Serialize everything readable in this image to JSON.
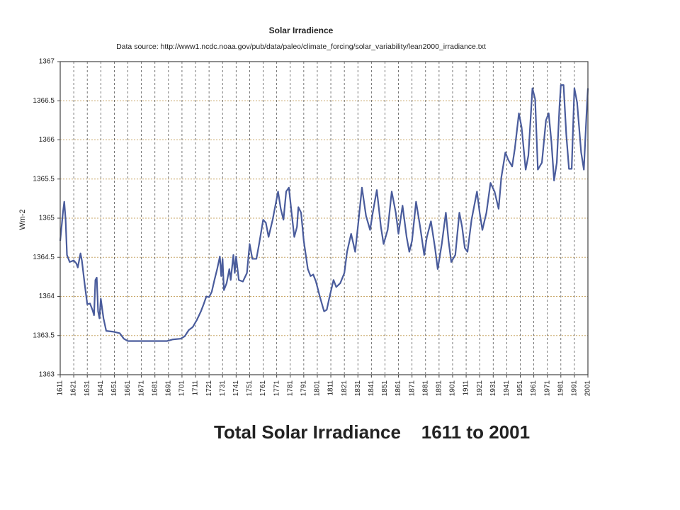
{
  "chart_data": {
    "type": "line",
    "title": "Solar Irradience",
    "subtitle": "Data source: http://www1.ncdc.noaa.gov/pub/data/paleo/climate_forcing/solar_variability/lean2000_irradiance.txt",
    "y_label": "Wm-2",
    "caption": "Total Solar Irradiance    1611 to 2001",
    "color": "#4a5c9c",
    "grid": true,
    "xlim": [
      1611,
      2001
    ],
    "ylim": [
      1363,
      1367
    ],
    "xticks": [
      1611,
      1621,
      1631,
      1641,
      1651,
      1661,
      1671,
      1681,
      1691,
      1701,
      1711,
      1721,
      1731,
      1741,
      1751,
      1761,
      1771,
      1781,
      1791,
      1801,
      1811,
      1821,
      1831,
      1841,
      1851,
      1861,
      1871,
      1881,
      1891,
      1901,
      1911,
      1921,
      1931,
      1941,
      1951,
      1961,
      1971,
      1981,
      1991,
      2001
    ],
    "yticks": [
      1363,
      1363.5,
      1364,
      1364.5,
      1365,
      1365.5,
      1366,
      1366.5,
      1367
    ],
    "x": [
      1611,
      1613,
      1614,
      1615,
      1616,
      1618,
      1621,
      1623,
      1624,
      1626,
      1627,
      1629,
      1631,
      1633,
      1635,
      1636,
      1637,
      1638,
      1639,
      1640,
      1641,
      1643,
      1645,
      1650,
      1655,
      1658,
      1661,
      1670,
      1680,
      1690,
      1694,
      1700,
      1703,
      1706,
      1709,
      1712,
      1715,
      1717,
      1719,
      1721,
      1723,
      1725,
      1727,
      1729,
      1730,
      1731,
      1732,
      1734,
      1736,
      1737,
      1739,
      1740,
      1741,
      1743,
      1746,
      1749,
      1751,
      1753,
      1756,
      1758,
      1761,
      1763,
      1765,
      1768,
      1770,
      1772,
      1774,
      1776,
      1778,
      1780,
      1782,
      1784,
      1786,
      1787,
      1789,
      1791,
      1794,
      1796,
      1798,
      1800,
      1803,
      1806,
      1808,
      1810,
      1813,
      1815,
      1818,
      1821,
      1823,
      1826,
      1829,
      1831,
      1834,
      1837,
      1840,
      1842,
      1845,
      1848,
      1850,
      1853,
      1856,
      1859,
      1861,
      1864,
      1867,
      1869,
      1871,
      1874,
      1877,
      1880,
      1882,
      1885,
      1888,
      1890,
      1893,
      1896,
      1898,
      1900,
      1903,
      1906,
      1908,
      1910,
      1912,
      1915,
      1917,
      1919,
      1921,
      1923,
      1926,
      1929,
      1932,
      1935,
      1937,
      1940,
      1942,
      1945,
      1947,
      1950,
      1952,
      1955,
      1957,
      1960,
      1962,
      1964,
      1967,
      1970,
      1972,
      1974,
      1976,
      1978,
      1980,
      1981,
      1983,
      1985,
      1987,
      1989,
      1991,
      1993,
      1996,
      1998,
      2000,
      2001
    ],
    "values": [
      1364.71,
      1365.07,
      1365.21,
      1364.98,
      1364.53,
      1364.44,
      1364.46,
      1364.42,
      1364.37,
      1364.55,
      1364.46,
      1364.17,
      1363.9,
      1363.91,
      1363.82,
      1363.76,
      1364.21,
      1364.24,
      1363.81,
      1363.72,
      1363.97,
      1363.72,
      1363.56,
      1363.55,
      1363.53,
      1363.46,
      1363.43,
      1363.43,
      1363.43,
      1363.43,
      1363.45,
      1363.46,
      1363.49,
      1363.57,
      1363.61,
      1363.7,
      1363.81,
      1363.9,
      1364.0,
      1363.99,
      1364.06,
      1364.21,
      1364.35,
      1364.51,
      1364.26,
      1364.48,
      1364.08,
      1364.17,
      1364.35,
      1364.21,
      1364.53,
      1364.3,
      1364.51,
      1364.21,
      1364.19,
      1364.3,
      1364.67,
      1364.48,
      1364.48,
      1364.67,
      1364.98,
      1364.94,
      1364.76,
      1364.98,
      1365.16,
      1365.34,
      1365.12,
      1364.98,
      1365.34,
      1365.39,
      1365.07,
      1364.76,
      1364.89,
      1365.14,
      1365.07,
      1364.71,
      1364.35,
      1364.26,
      1364.28,
      1364.19,
      1363.99,
      1363.81,
      1363.83,
      1363.99,
      1364.21,
      1364.12,
      1364.17,
      1364.3,
      1364.57,
      1364.8,
      1364.57,
      1364.89,
      1365.39,
      1365.03,
      1364.85,
      1365.07,
      1365.36,
      1364.89,
      1364.67,
      1364.85,
      1365.34,
      1365.07,
      1364.8,
      1365.16,
      1364.76,
      1364.57,
      1364.71,
      1365.21,
      1364.89,
      1364.53,
      1364.76,
      1364.96,
      1364.62,
      1364.35,
      1364.67,
      1365.07,
      1364.71,
      1364.44,
      1364.53,
      1365.07,
      1364.89,
      1364.62,
      1364.57,
      1364.98,
      1365.16,
      1365.34,
      1365.07,
      1364.85,
      1365.07,
      1365.45,
      1365.34,
      1365.12,
      1365.52,
      1365.84,
      1365.75,
      1365.66,
      1365.89,
      1366.34,
      1366.16,
      1365.62,
      1365.8,
      1366.66,
      1366.52,
      1365.62,
      1365.71,
      1366.25,
      1366.34,
      1365.98,
      1365.48,
      1365.71,
      1366.43,
      1366.7,
      1366.7,
      1366.07,
      1365.63,
      1365.63,
      1366.66,
      1366.48,
      1365.84,
      1365.62,
      1366.34,
      1366.66
    ]
  }
}
